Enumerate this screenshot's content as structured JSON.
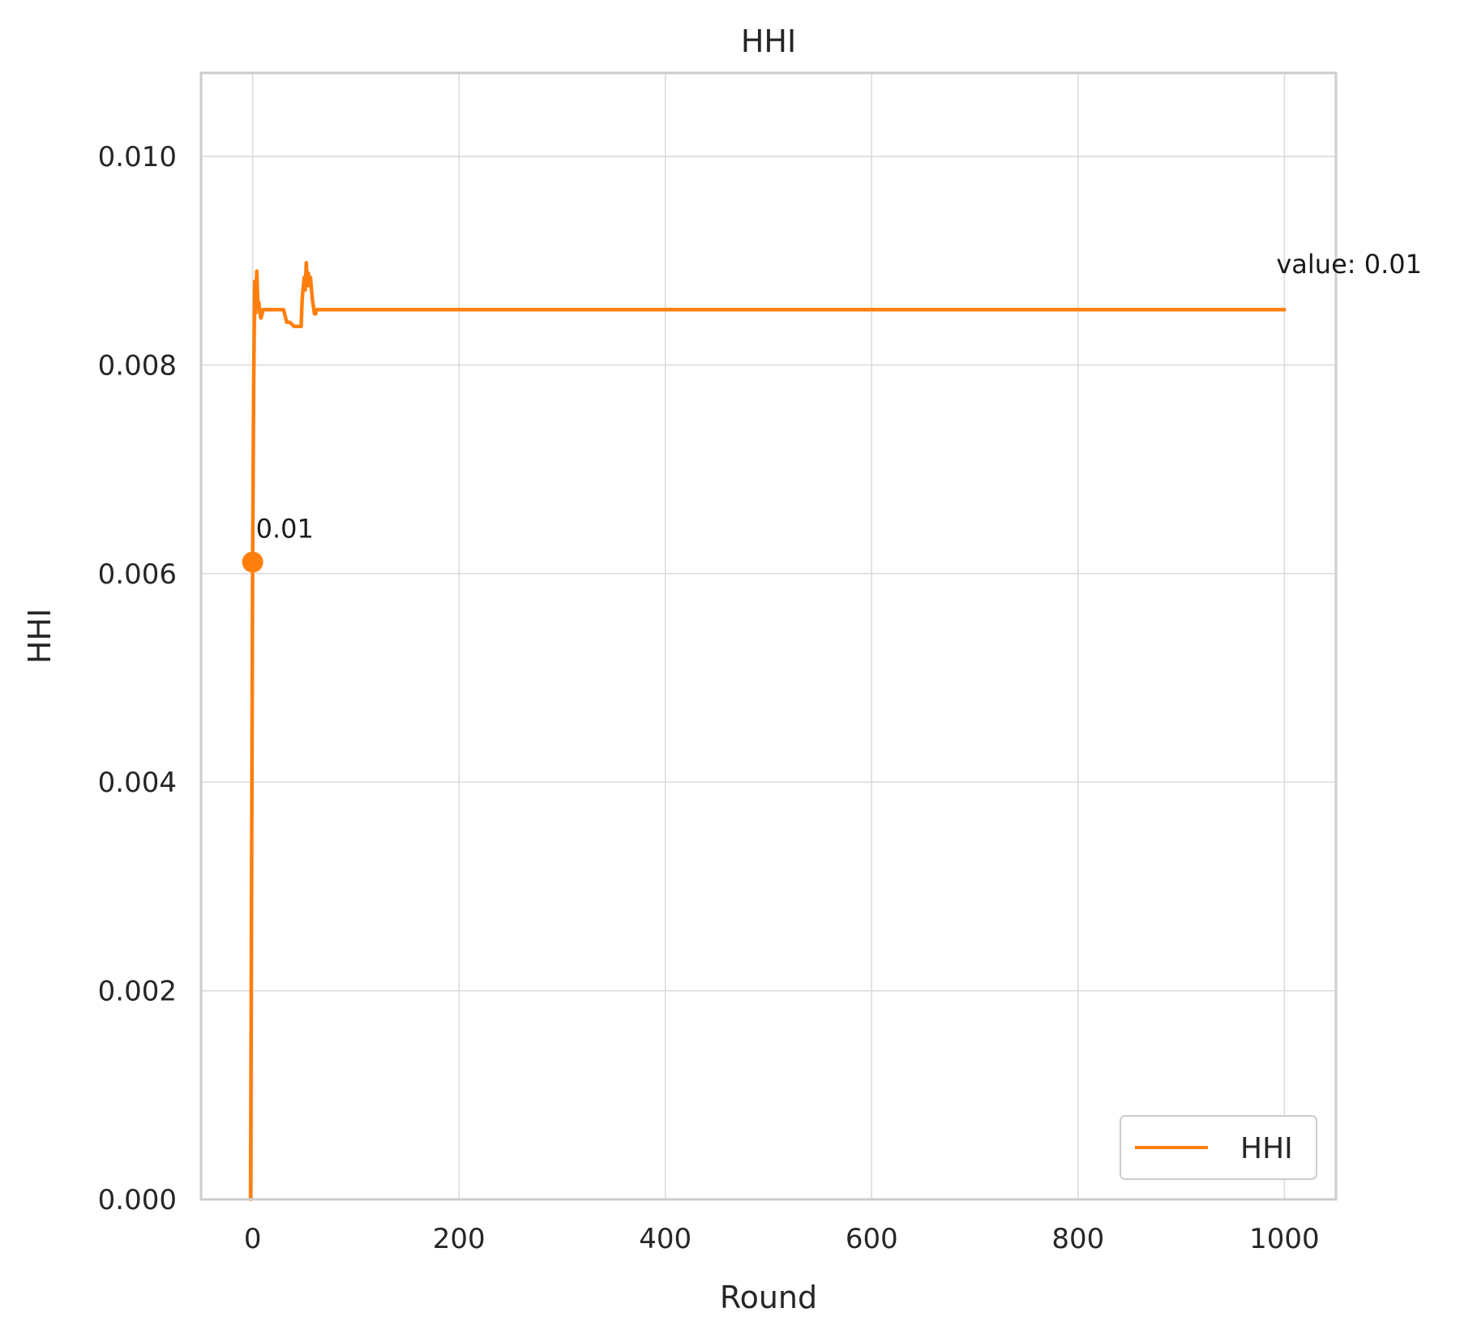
{
  "chart_data": {
    "type": "line",
    "title": "HHI",
    "xlabel": "Round",
    "ylabel": "HHI",
    "xlim": [
      -50,
      1050
    ],
    "ylim": [
      0,
      0.0108
    ],
    "x_ticks": [
      0,
      200,
      400,
      600,
      800,
      1000
    ],
    "x_tick_labels": [
      "0",
      "200",
      "400",
      "600",
      "800",
      "1000"
    ],
    "y_ticks": [
      0,
      0.002,
      0.004,
      0.006,
      0.008,
      0.01
    ],
    "y_tick_labels": [
      "0.000",
      "0.002",
      "0.004",
      "0.006",
      "0.008",
      "0.010"
    ],
    "grid": true,
    "legend": {
      "location": "lower-right",
      "entries": [
        "HHI"
      ]
    },
    "series": [
      {
        "name": "HHI",
        "color": "#ff7f0e",
        "x": [
          -2,
          0,
          1,
          2,
          3,
          4,
          5,
          6,
          7,
          8,
          9,
          10,
          12,
          15,
          20,
          30,
          33,
          36,
          40,
          45,
          47,
          48,
          50,
          51,
          52,
          53,
          54,
          55,
          56,
          58,
          60,
          61,
          62,
          63,
          64,
          100,
          200,
          400,
          600,
          800,
          1000
        ],
        "y": [
          0.0,
          0.00611,
          0.0078,
          0.0088,
          0.0085,
          0.0089,
          0.0086,
          0.0086,
          0.0085,
          0.00845,
          0.00848,
          0.00853,
          0.00853,
          0.00853,
          0.00853,
          0.00853,
          0.00841,
          0.00841,
          0.00837,
          0.00837,
          0.00837,
          0.00863,
          0.00884,
          0.00872,
          0.00898,
          0.00876,
          0.00888,
          0.00876,
          0.00884,
          0.00862,
          0.00849,
          0.00849,
          0.00853,
          0.00853,
          0.00853,
          0.00853,
          0.00853,
          0.00853,
          0.00853,
          0.00853,
          0.00853
        ]
      }
    ],
    "marker": {
      "x": 0,
      "y": 0.00611,
      "label": "0.01"
    },
    "end_annotation": {
      "x": 1000,
      "y": 0.00853,
      "label": "value: 0.01"
    }
  }
}
